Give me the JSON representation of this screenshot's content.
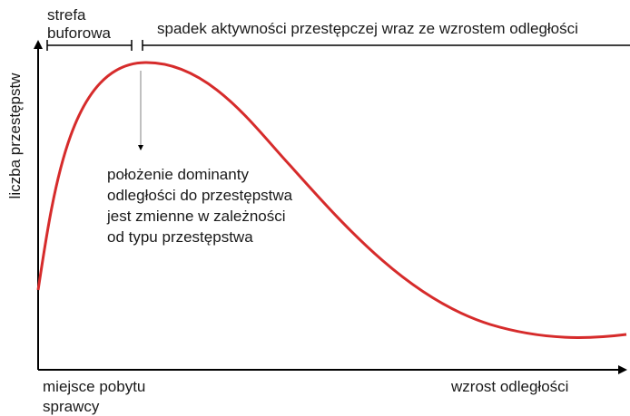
{
  "buffer_zone": {
    "lines": [
      "strefa",
      "buforowa"
    ]
  },
  "decline_label": "spadek aktywności przestępczej wraz ze wzrostem odległości",
  "annotation": {
    "lines": [
      "położenie dominanty",
      "odległości do przestępstwa",
      "jest zmienne w zależności",
      "od typu przestępstwa"
    ]
  },
  "y_axis_label": "liczba przestępstw",
  "x_axis_start": {
    "lines": [
      "miejsce pobytu",
      "sprawcy"
    ]
  },
  "x_axis_end": "wzrost odległości"
}
